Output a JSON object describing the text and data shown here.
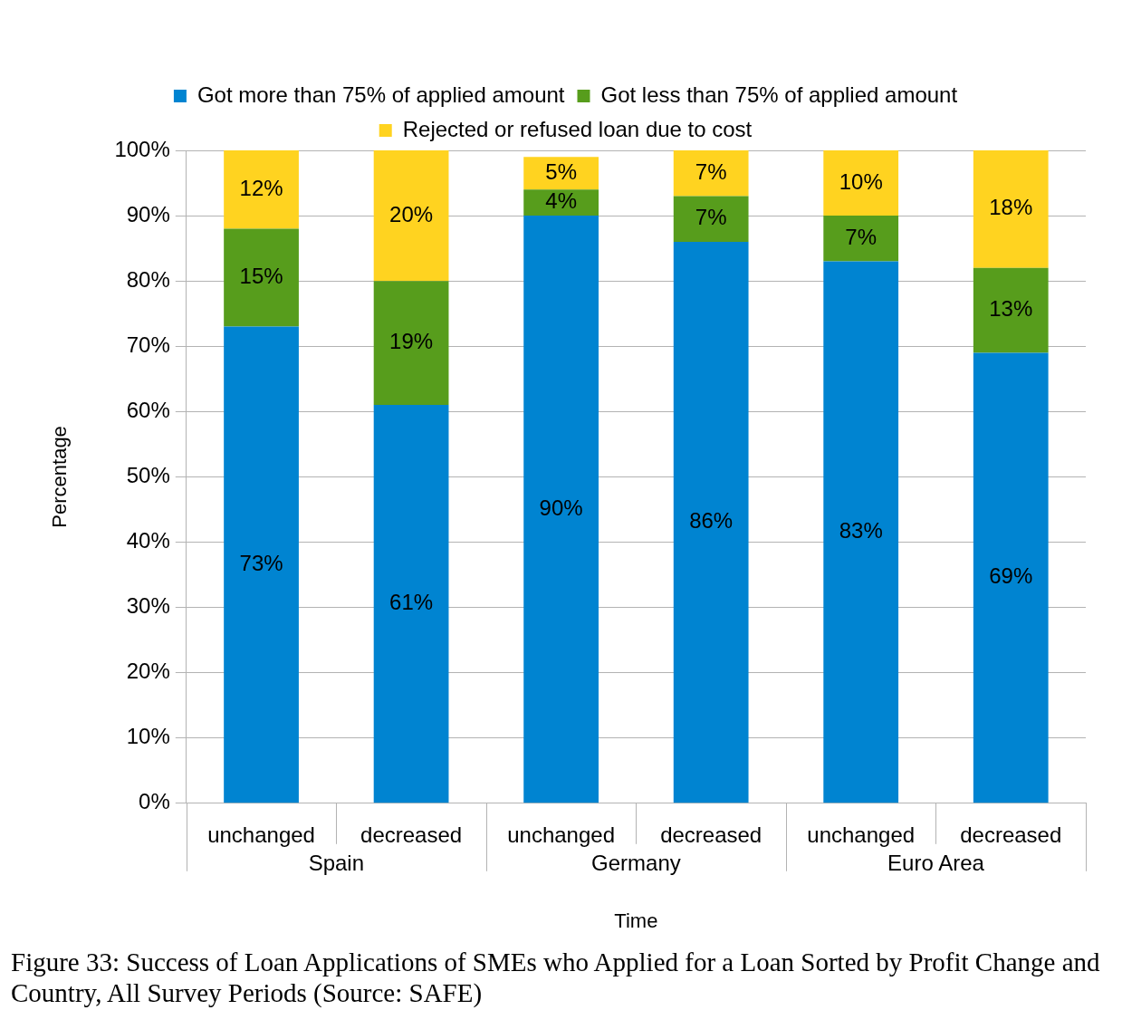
{
  "chart_data": {
    "type": "bar",
    "stacked": true,
    "title": "Figure 33: Success of Loan Applications of SMEs who Applied for a Loan Sorted by Profit Change and Country, All Survey Periods (Source: SAFE)",
    "xlabel": "Time",
    "ylabel": "Percentage",
    "categories": [
      "unchanged",
      "decreased",
      "unchanged",
      "decreased",
      "unchanged",
      "decreased"
    ],
    "annotations": [
      "Spain",
      "Germany",
      "Euro Area"
    ],
    "series": [
      {
        "name": "Got more than 75% of applied amount",
        "color": "#0084d1",
        "values": [
          73,
          61,
          90,
          86,
          83,
          69
        ],
        "value_labels": [
          "73%",
          "61%",
          "90%",
          "86%",
          "83%",
          "69%"
        ]
      },
      {
        "name": "Got less than 75% of applied amount",
        "color": "#579d1c",
        "values": [
          15,
          19,
          4,
          7,
          7,
          13
        ],
        "value_labels": [
          "15%",
          "19%",
          "4%",
          "7%",
          "7%",
          "13%"
        ]
      },
      {
        "name": "Rejected or refused loan due to cost",
        "color": "#ffd320",
        "values": [
          12,
          20,
          5,
          7,
          10,
          18
        ],
        "value_labels": [
          "12%",
          "20%",
          "5%",
          "7%",
          "10%",
          "18%"
        ]
      }
    ],
    "ylim": [
      0,
      100
    ],
    "yticks": [
      {
        "value": 0,
        "label": "0%"
      },
      {
        "value": 10,
        "label": "10%"
      },
      {
        "value": 20,
        "label": "20%"
      },
      {
        "value": 30,
        "label": "30%"
      },
      {
        "value": 40,
        "label": "40%"
      },
      {
        "value": 50,
        "label": "50%"
      },
      {
        "value": 60,
        "label": "60%"
      },
      {
        "value": 70,
        "label": "70%"
      },
      {
        "value": 80,
        "label": "80%"
      },
      {
        "value": 90,
        "label": "90%"
      },
      {
        "value": 100,
        "label": "100%"
      }
    ],
    "grid": "y",
    "legend": "top"
  }
}
